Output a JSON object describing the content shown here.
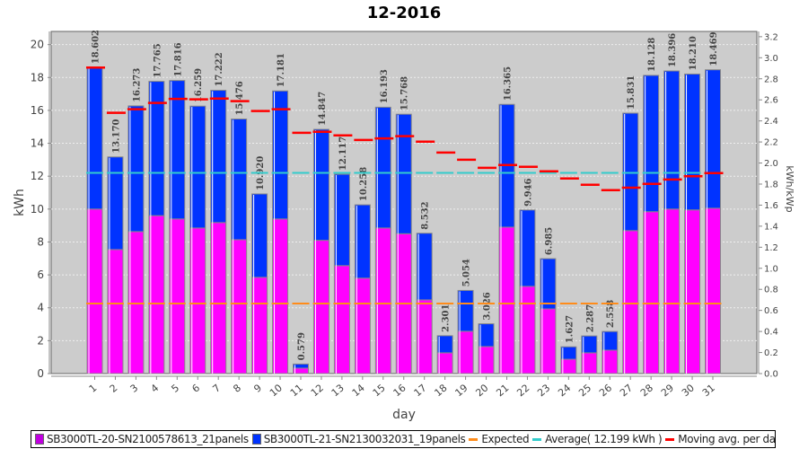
{
  "chart_data": {
    "type": "bar",
    "title": "12-2016",
    "xlabel": "day",
    "ylabel": "kWh",
    "y2label": "kWh/kWp",
    "ylim": [
      0,
      20.8
    ],
    "y2lim": [
      0,
      3.25
    ],
    "yticks": [
      "0",
      "2",
      "4",
      "6",
      "8",
      "10",
      "12",
      "14",
      "16",
      "18",
      "20"
    ],
    "y2ticks": [
      "0.0",
      "0.2",
      "0.4",
      "0.6",
      "0.8",
      "1.0",
      "1.2",
      "1.4",
      "1.6",
      "1.8",
      "2.0",
      "2.2",
      "2.4",
      "2.6",
      "2.8",
      "3.0",
      "3.2"
    ],
    "categories": [
      "1",
      "2",
      "3",
      "4",
      "5",
      "6",
      "7",
      "8",
      "9",
      "10",
      "11",
      "12",
      "13",
      "14",
      "15",
      "16",
      "17",
      "18",
      "19",
      "20",
      "21",
      "22",
      "23",
      "24",
      "25",
      "26",
      "27",
      "28",
      "29",
      "30",
      "31"
    ],
    "totals_labels": [
      "18.602",
      "13.170",
      "16.273",
      "17.765",
      "17.816",
      "16.259",
      "17.222",
      "15.476",
      "10.920",
      "17.181",
      "0.579",
      "14.847",
      "12.117",
      "10.258",
      "16.193",
      "15.768",
      "8.532",
      "2.301",
      "5.054",
      "3.026",
      "16.365",
      "9.946",
      "6.985",
      "1.627",
      "2.287",
      "2.558",
      "15.831",
      "18.128",
      "18.396",
      "18.210",
      "18.469"
    ],
    "series": [
      {
        "name": "SB3000TL-20-SN2100578613_21panels",
        "color": "#ff00ff",
        "values": [
          10.0,
          7.54,
          8.63,
          9.6,
          9.4,
          8.85,
          9.18,
          8.14,
          5.85,
          9.4,
          0.33,
          8.1,
          6.56,
          5.8,
          8.85,
          8.5,
          4.48,
          1.26,
          2.57,
          1.64,
          8.9,
          5.3,
          3.93,
          0.87,
          1.26,
          1.42,
          8.69,
          9.84,
          10.0,
          9.95,
          10.05
        ]
      },
      {
        "name": "SB3000TL-21-SN2130032031_19panels",
        "color": "#0033ff",
        "values": [
          8.602,
          5.63,
          7.643,
          8.165,
          8.416,
          7.409,
          8.042,
          7.336,
          5.07,
          7.781,
          0.249,
          6.747,
          5.557,
          4.458,
          7.343,
          7.268,
          4.052,
          1.041,
          2.484,
          1.386,
          7.465,
          4.646,
          3.055,
          0.757,
          1.027,
          1.138,
          7.141,
          8.288,
          8.396,
          8.26,
          8.419
        ]
      },
      {
        "name": "Expected",
        "color": "#ff8c1a",
        "type": "line-steps",
        "value": 4.26
      },
      {
        "name": "Average( 12.199 kWh )",
        "color": "#33cccc",
        "type": "line-steps",
        "value": 12.199
      },
      {
        "name": "Moving avg. per day.",
        "color": "#ff0000",
        "type": "line-steps",
        "values": [
          18.6,
          15.85,
          16.07,
          16.45,
          16.7,
          16.67,
          16.72,
          16.56,
          15.96,
          16.07,
          14.64,
          14.7,
          14.48,
          14.2,
          14.3,
          14.43,
          14.1,
          13.44,
          13.0,
          12.51,
          12.68,
          12.57,
          12.3,
          11.86,
          11.48,
          11.15,
          11.3,
          11.53,
          11.8,
          12.0,
          12.19
        ]
      }
    ],
    "grid": true,
    "legend": "bottom"
  }
}
